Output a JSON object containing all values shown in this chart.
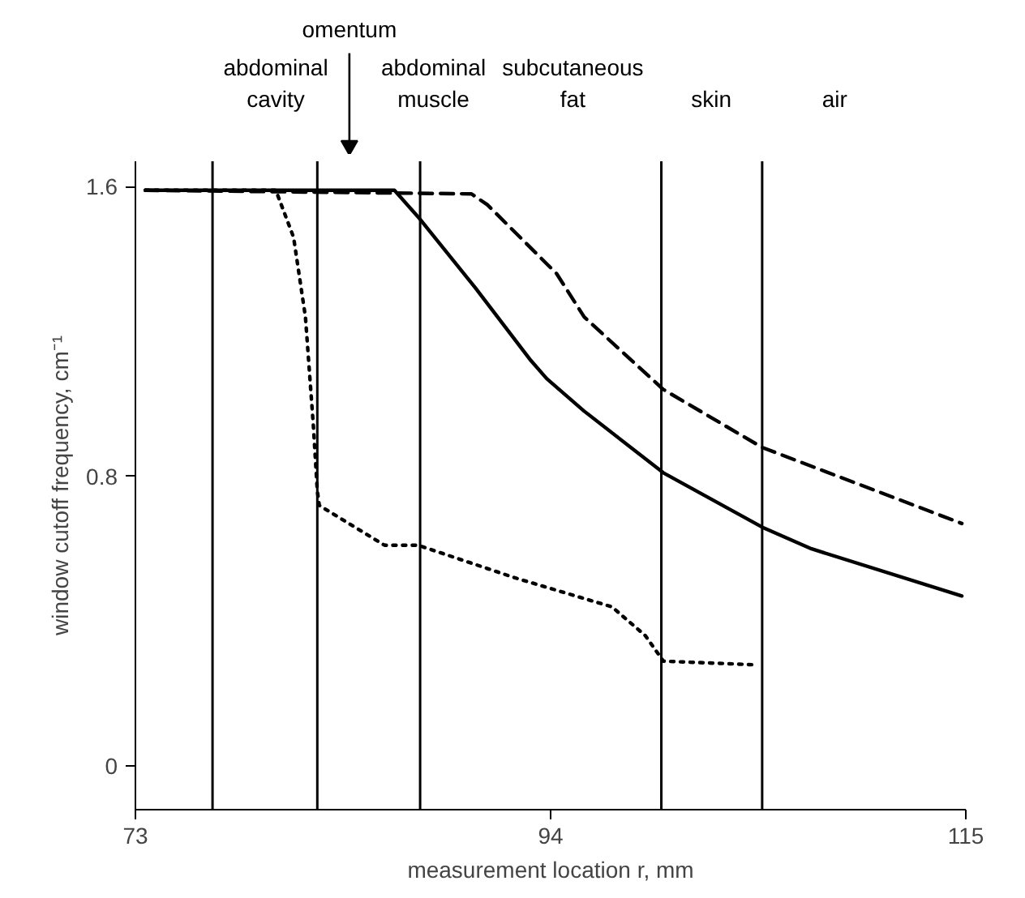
{
  "chart_data": {
    "type": "line",
    "xlabel": "measurement location r, mm",
    "ylabel": "window cutoff frequency, cm⁻¹",
    "xlim": [
      73,
      115
    ],
    "ylim": [
      -0.12,
      1.67
    ],
    "xticks": [
      73,
      94,
      115
    ],
    "yticks": [
      0,
      0.8,
      1.6
    ],
    "grid": false,
    "marker": "none",
    "series": [
      {
        "color": "#000000",
        "line_style": "solid",
        "x": [
          73.5,
          86.1,
          87.4,
          90.2,
          93.0,
          93.8,
          95.7,
          99.7,
          104.7,
          107.2,
          114.8
        ],
        "values": [
          1.59,
          1.59,
          1.51,
          1.32,
          1.12,
          1.07,
          0.98,
          0.81,
          0.66,
          0.6,
          0.47
        ]
      },
      {
        "color": "#000000",
        "line_style": "dashed",
        "x": [
          73.5,
          90.0,
          90.8,
          94.3,
          95.7,
          99.7,
          104.7,
          114.8
        ],
        "values": [
          1.59,
          1.58,
          1.55,
          1.36,
          1.24,
          1.04,
          0.88,
          0.67
        ]
      },
      {
        "color": "#000000",
        "line_style": "dotted",
        "x": [
          73.5,
          80.1,
          81.0,
          81.6,
          82.0,
          82.2,
          82.3,
          85.6,
          87.3,
          92.2,
          97.1,
          98.8,
          99.7,
          104.3
        ],
        "values": [
          1.59,
          1.59,
          1.46,
          1.24,
          0.94,
          0.76,
          0.72,
          0.61,
          0.61,
          0.52,
          0.44,
          0.36,
          0.29,
          0.28
        ]
      }
    ],
    "ref_lines": [
      {
        "axis": "x",
        "value": 76.9,
        "color": "#000000"
      },
      {
        "axis": "x",
        "value": 82.2,
        "color": "#000000"
      },
      {
        "axis": "x",
        "value": 87.4,
        "color": "#000000"
      },
      {
        "axis": "x",
        "value": 99.6,
        "color": "#000000"
      },
      {
        "axis": "x",
        "value": 104.7,
        "color": "#000000"
      }
    ],
    "annotations": [
      "abdominal\ncavity",
      "omentum",
      "abdominal\nmuscle",
      "subcutaneous\nfat",
      "skin",
      "air"
    ]
  }
}
